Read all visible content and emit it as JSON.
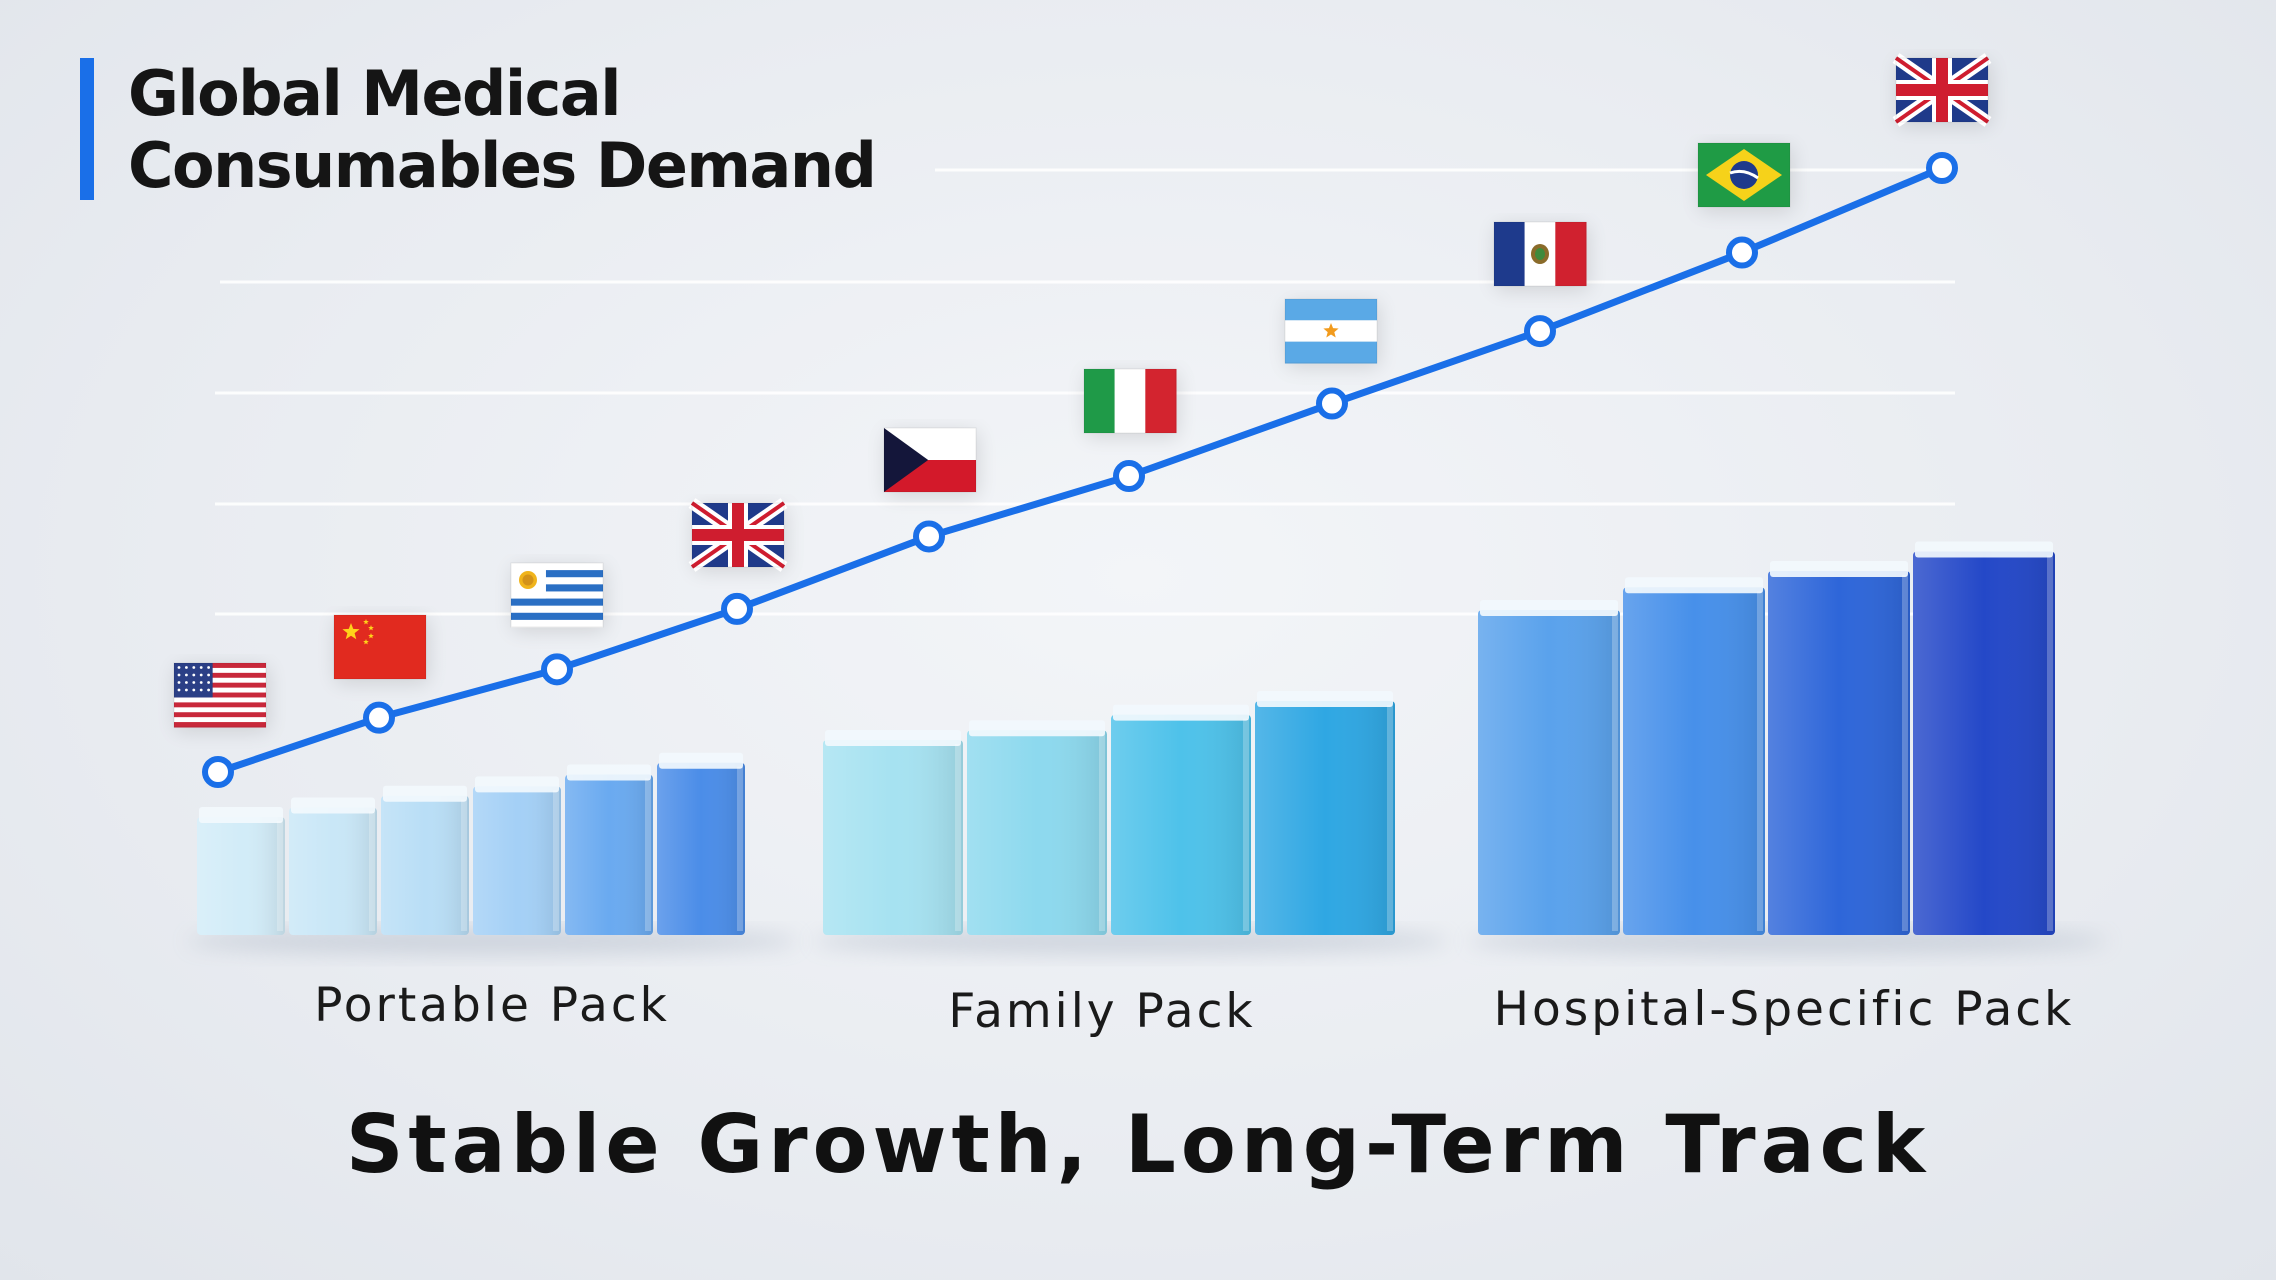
{
  "title": {
    "line1": "Global Medical",
    "line2": "Consumables Demand"
  },
  "tagline": "Stable Growth, Long-Term Track",
  "colors": {
    "accent_bar": "#1a6fe8",
    "trend_line": "#1a6fe8",
    "portable": [
      "#d2ecf8",
      "#c9e7f7",
      "#b9def6",
      "#a4d0f6",
      "#6aaaf0",
      "#4b8de8"
    ],
    "family": [
      "#a6e2f1",
      "#8dd9ee",
      "#4ec2ea",
      "#2fa7e3"
    ],
    "hospital": [
      "#5aa2ec",
      "#4790ea",
      "#2e66d9",
      "#2448c8"
    ]
  },
  "groups": [
    {
      "label": "Portable Pack",
      "boxes": 6,
      "heights": [
        1,
        1.08,
        1.18,
        1.26,
        1.36,
        1.46
      ]
    },
    {
      "label": "Family Pack",
      "boxes": 4,
      "heights": [
        1,
        1.05,
        1.13,
        1.2
      ]
    },
    {
      "label": "Hospital-Specific Pack",
      "boxes": 4,
      "heights": [
        1,
        1.07,
        1.12,
        1.18
      ]
    }
  ],
  "trend_points": [
    {
      "flag": "united-states-flag-icon"
    },
    {
      "flag": "china-flag-icon"
    },
    {
      "flag": "uruguay-flag-icon"
    },
    {
      "flag": "united-kingdom-flag-icon"
    },
    {
      "flag": "czech-republic-flag-icon"
    },
    {
      "flag": "italy-flag-icon"
    },
    {
      "flag": "argentina-flag-icon"
    },
    {
      "flag": "mexico-flag-icon"
    },
    {
      "flag": "brazil-flag-icon"
    },
    {
      "flag": "united-kingdom-flag-icon"
    }
  ],
  "trend_values": [
    0,
    0.09,
    0.17,
    0.27,
    0.39,
    0.49,
    0.61,
    0.73,
    0.86,
    1.0
  ]
}
